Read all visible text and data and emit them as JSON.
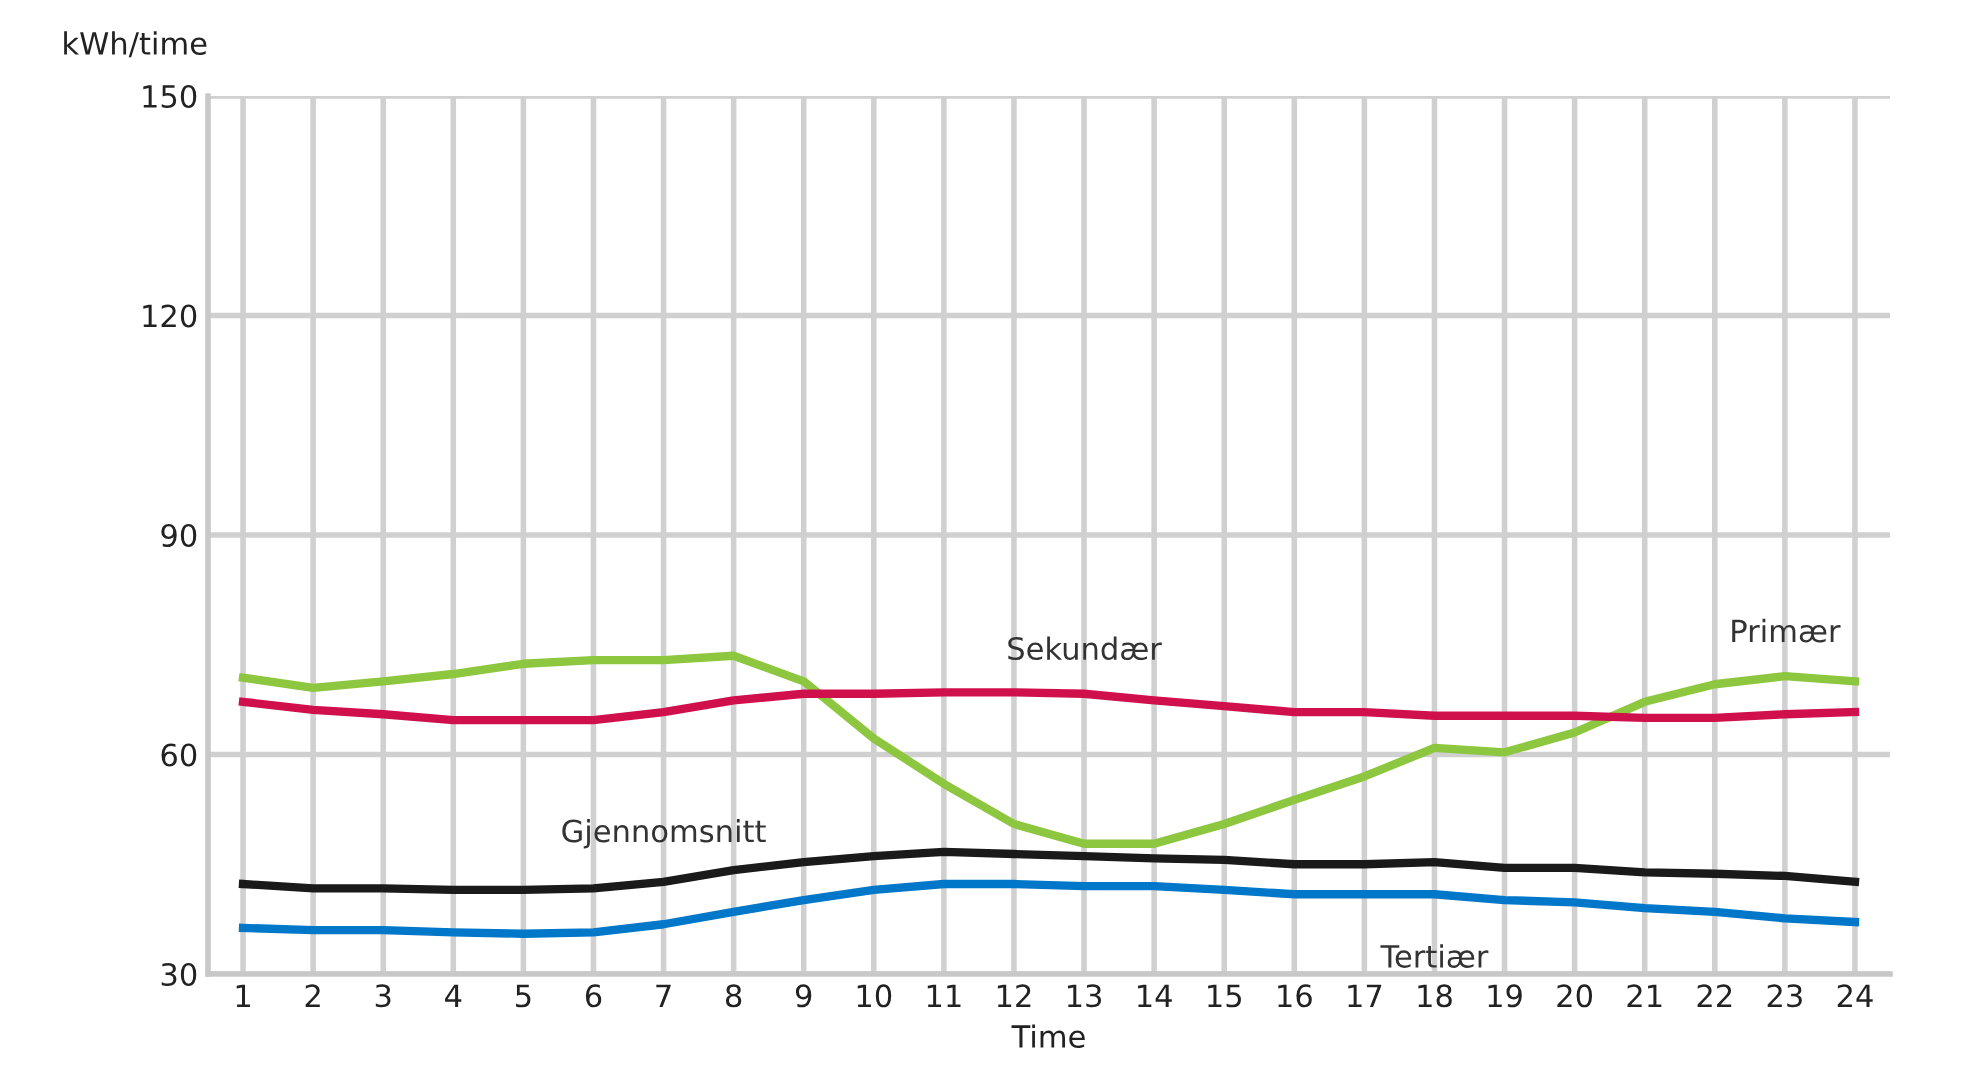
{
  "chart_data": {
    "type": "line",
    "xlabel": "Time",
    "ylabel": "kWh/time",
    "x": [
      1,
      2,
      3,
      4,
      5,
      6,
      7,
      8,
      9,
      10,
      11,
      12,
      13,
      14,
      15,
      16,
      17,
      18,
      19,
      20,
      21,
      22,
      23,
      24
    ],
    "xlim": [
      0.5,
      24.5
    ],
    "xticks": [
      1,
      2,
      3,
      4,
      5,
      6,
      7,
      8,
      9,
      10,
      11,
      12,
      13,
      14,
      15,
      16,
      17,
      18,
      19,
      20,
      21,
      22,
      23,
      24
    ],
    "ylim": [
      30,
      150
    ],
    "yticks": [
      30,
      60,
      90,
      120,
      150
    ],
    "grid": true,
    "legend": false,
    "marker": "none",
    "line_style": "solid",
    "series": [
      {
        "name": "Primær",
        "color": "#8dc63f",
        "values": [
          70.5,
          69.1,
          70,
          71,
          72.4,
          72.9,
          72.9,
          73.5,
          70,
          62.2,
          56,
          50.5,
          47.8,
          47.8,
          50.5,
          53.8,
          57,
          60.9,
          60.3,
          63,
          67.2,
          69.6,
          70.7,
          70
        ]
      },
      {
        "name": "Sekundær",
        "color": "#d0104c",
        "values": [
          67.2,
          66.1,
          65.5,
          64.7,
          64.7,
          64.7,
          65.8,
          67.4,
          68.3,
          68.3,
          68.5,
          68.5,
          68.3,
          67.4,
          66.6,
          65.8,
          65.8,
          65.3,
          65.3,
          65.3,
          65,
          65,
          65.5,
          65.8
        ]
      },
      {
        "name": "Gjennomsnitt",
        "color": "#1a1a1a",
        "values": [
          42.3,
          41.7,
          41.7,
          41.5,
          41.5,
          41.7,
          42.6,
          44.2,
          45.3,
          46.1,
          46.7,
          46.4,
          46.1,
          45.8,
          45.6,
          45,
          45,
          45.3,
          44.5,
          44.5,
          43.9,
          43.7,
          43.4,
          42.6
        ]
      },
      {
        "name": "Tertiær",
        "color": "#0077c8",
        "values": [
          36.3,
          36,
          36,
          35.7,
          35.5,
          35.7,
          36.8,
          38.5,
          40.1,
          41.5,
          42.3,
          42.3,
          42,
          42,
          41.5,
          40.9,
          40.9,
          40.9,
          40.1,
          39.8,
          39,
          38.5,
          37.6,
          37.1
        ]
      }
    ]
  }
}
